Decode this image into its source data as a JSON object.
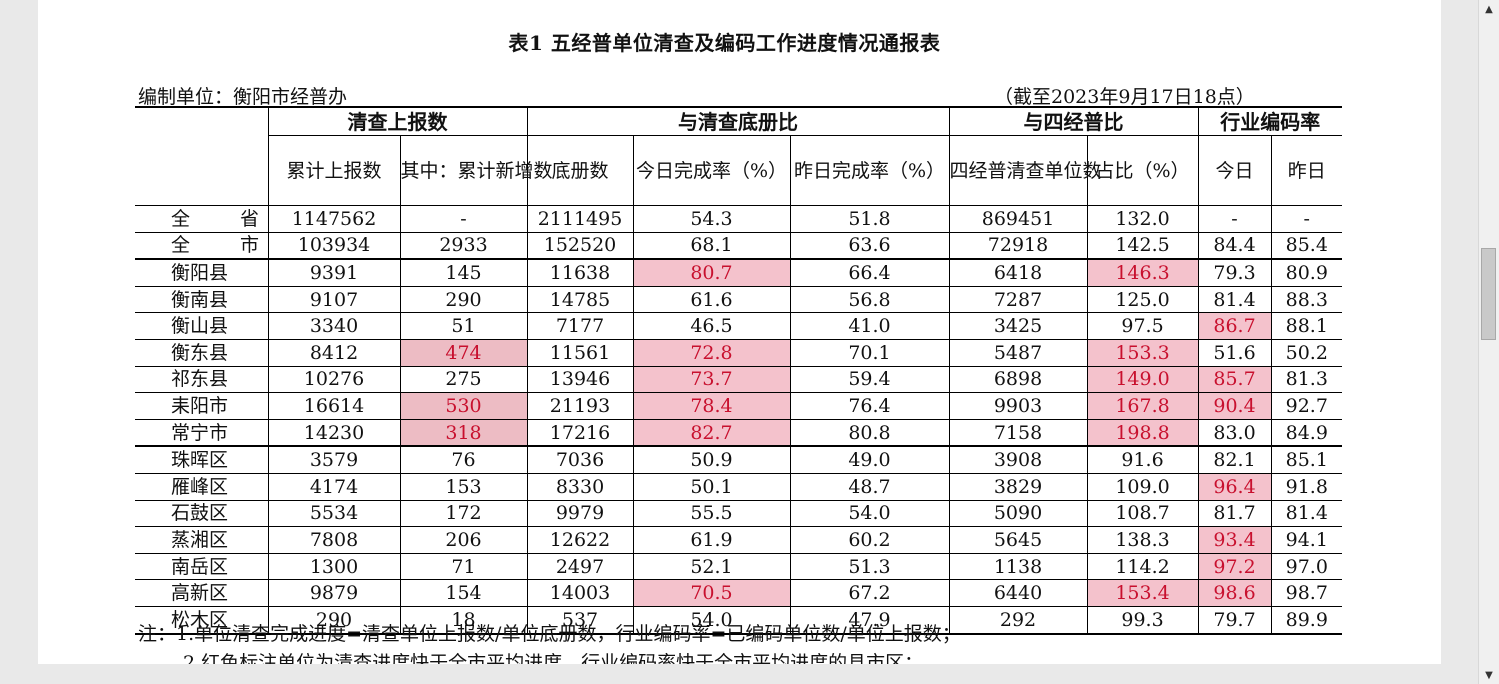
{
  "title": "表1  五经普单位清查及编码工作进度情况通报表",
  "unit_label": "编制单位：衡阳市经普办",
  "as_of": "（截至2023年9月17日18点）",
  "header": {
    "group1": "清查上报数",
    "group2": "与清查底册比",
    "group3": "与四经普比",
    "group4": "行业编码率",
    "cols": [
      "累计上报数",
      "其中：累计新增数",
      "底册数",
      "今日完成率（%）",
      "昨日完成率（%）",
      "四经普清查单位数",
      "占比（%）",
      "今日",
      "昨日"
    ]
  },
  "rows": [
    {
      "region": "全  省",
      "cumulative": "1147562",
      "new": "-",
      "register": "2111495",
      "today_rate": "54.3",
      "yday_rate": "51.8",
      "census4": "869451",
      "ratio": "132.0",
      "code_today": "-",
      "code_yday": "-"
    },
    {
      "region": "全  市",
      "cumulative": "103934",
      "new": "2933",
      "register": "152520",
      "today_rate": "68.1",
      "yday_rate": "63.6",
      "census4": "72918",
      "ratio": "142.5",
      "code_today": "84.4",
      "code_yday": "85.4"
    },
    {
      "region": "衡阳县",
      "cumulative": "9391",
      "new": "145",
      "register": "11638",
      "today_rate": "80.7",
      "yday_rate": "66.4",
      "census4": "6418",
      "ratio": "146.3",
      "code_today": "79.3",
      "code_yday": "80.9"
    },
    {
      "region": "衡南县",
      "cumulative": "9107",
      "new": "290",
      "register": "14785",
      "today_rate": "61.6",
      "yday_rate": "56.8",
      "census4": "7287",
      "ratio": "125.0",
      "code_today": "81.4",
      "code_yday": "88.3"
    },
    {
      "region": "衡山县",
      "cumulative": "3340",
      "new": "51",
      "register": "7177",
      "today_rate": "46.5",
      "yday_rate": "41.0",
      "census4": "3425",
      "ratio": "97.5",
      "code_today": "86.7",
      "code_yday": "88.1"
    },
    {
      "region": "衡东县",
      "cumulative": "8412",
      "new": "474",
      "register": "11561",
      "today_rate": "72.8",
      "yday_rate": "70.1",
      "census4": "5487",
      "ratio": "153.3",
      "code_today": "51.6",
      "code_yday": "50.2"
    },
    {
      "region": "祁东县",
      "cumulative": "10276",
      "new": "275",
      "register": "13946",
      "today_rate": "73.7",
      "yday_rate": "59.4",
      "census4": "6898",
      "ratio": "149.0",
      "code_today": "85.7",
      "code_yday": "81.3"
    },
    {
      "region": "耒阳市",
      "cumulative": "16614",
      "new": "530",
      "register": "21193",
      "today_rate": "78.4",
      "yday_rate": "76.4",
      "census4": "9903",
      "ratio": "167.8",
      "code_today": "90.4",
      "code_yday": "92.7"
    },
    {
      "region": "常宁市",
      "cumulative": "14230",
      "new": "318",
      "register": "17216",
      "today_rate": "82.7",
      "yday_rate": "80.8",
      "census4": "7158",
      "ratio": "198.8",
      "code_today": "83.0",
      "code_yday": "84.9"
    },
    {
      "region": "珠晖区",
      "cumulative": "3579",
      "new": "76",
      "register": "7036",
      "today_rate": "50.9",
      "yday_rate": "49.0",
      "census4": "3908",
      "ratio": "91.6",
      "code_today": "82.1",
      "code_yday": "85.1"
    },
    {
      "region": "雁峰区",
      "cumulative": "4174",
      "new": "153",
      "register": "8330",
      "today_rate": "50.1",
      "yday_rate": "48.7",
      "census4": "3829",
      "ratio": "109.0",
      "code_today": "96.4",
      "code_yday": "91.8"
    },
    {
      "region": "石鼓区",
      "cumulative": "5534",
      "new": "172",
      "register": "9979",
      "today_rate": "55.5",
      "yday_rate": "54.0",
      "census4": "5090",
      "ratio": "108.7",
      "code_today": "81.7",
      "code_yday": "81.4"
    },
    {
      "region": "蒸湘区",
      "cumulative": "7808",
      "new": "206",
      "register": "12622",
      "today_rate": "61.9",
      "yday_rate": "60.2",
      "census4": "5645",
      "ratio": "138.3",
      "code_today": "93.4",
      "code_yday": "94.1"
    },
    {
      "region": "南岳区",
      "cumulative": "1300",
      "new": "71",
      "register": "2497",
      "today_rate": "52.1",
      "yday_rate": "51.3",
      "census4": "1138",
      "ratio": "114.2",
      "code_today": "97.2",
      "code_yday": "97.0"
    },
    {
      "region": "高新区",
      "cumulative": "9879",
      "new": "154",
      "register": "14003",
      "today_rate": "70.5",
      "yday_rate": "67.2",
      "census4": "6440",
      "ratio": "153.4",
      "code_today": "98.6",
      "code_yday": "98.7"
    },
    {
      "region": "松木区",
      "cumulative": "290",
      "new": "18",
      "register": "537",
      "today_rate": "54.0",
      "yday_rate": "47.9",
      "census4": "292",
      "ratio": "99.3",
      "code_today": "79.7",
      "code_yday": "89.9"
    }
  ],
  "highlights": {
    "new": [
      "衡东县",
      "耒阳市",
      "常宁市"
    ],
    "today_rate": [
      "衡阳县",
      "衡东县",
      "祁东县",
      "耒阳市",
      "常宁市",
      "高新区"
    ],
    "ratio": [
      "衡阳县",
      "衡东县",
      "祁东县",
      "耒阳市",
      "常宁市",
      "高新区"
    ],
    "code_today": [
      "衡山县",
      "祁东县",
      "耒阳市",
      "雁峰区",
      "蒸湘区",
      "南岳区",
      "高新区"
    ]
  },
  "highlight_color": "#f4c2cc",
  "highlight_text_color": "#c8102e",
  "notes": [
    "注：1.单位清查完成进度=清查单位上报数/单位底册数，行业编码率=已编码单位数/单位上报数；",
    "2.红色标注单位为清查进度快于全市平均进度、行业编码率快于全市平均进度的县市区；"
  ]
}
